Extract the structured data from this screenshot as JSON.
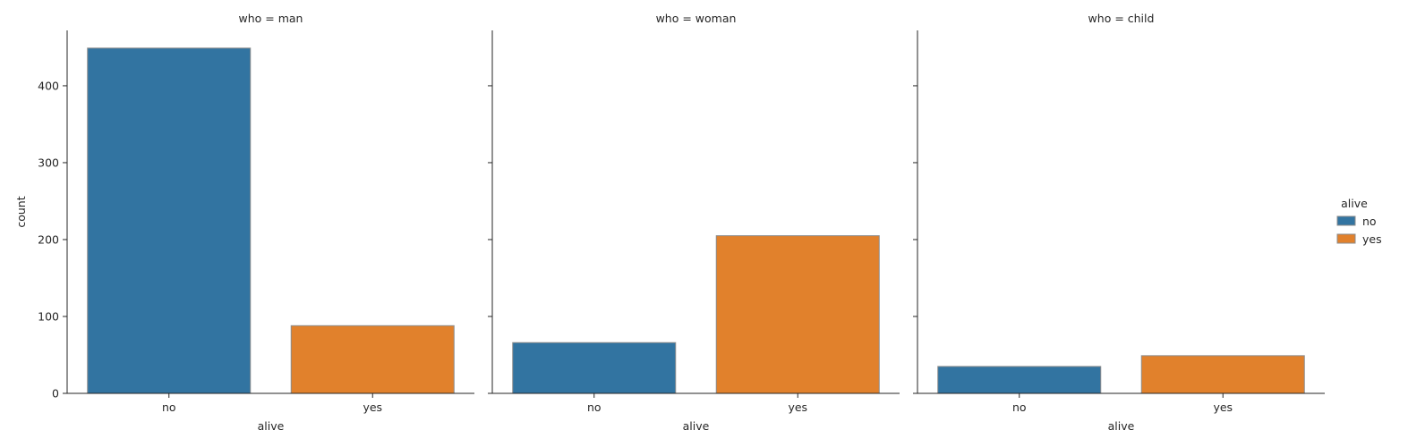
{
  "chart_data": {
    "type": "bar",
    "facet_variable": "who",
    "panels": [
      {
        "title": "who = man",
        "categories": [
          "no",
          "yes"
        ],
        "values": [
          449,
          88
        ]
      },
      {
        "title": "who = woman",
        "categories": [
          "no",
          "yes"
        ],
        "values": [
          66,
          205
        ]
      },
      {
        "title": "who = child",
        "categories": [
          "no",
          "yes"
        ],
        "values": [
          35,
          49
        ]
      }
    ],
    "xlabel": "alive",
    "ylabel": "count",
    "ylim": [
      0,
      472
    ],
    "yticks": [
      0,
      100,
      200,
      300,
      400
    ],
    "sharey": true,
    "grid": false,
    "legend": {
      "title": "alive",
      "placement": "right",
      "entries": [
        {
          "label": "no",
          "color": "#3274a1"
        },
        {
          "label": "yes",
          "color": "#e1812c"
        }
      ]
    },
    "colors": {
      "no": "#3274a1",
      "yes": "#e1812c",
      "bar_edge": "#8c8c8c",
      "axis": "#262626"
    }
  }
}
